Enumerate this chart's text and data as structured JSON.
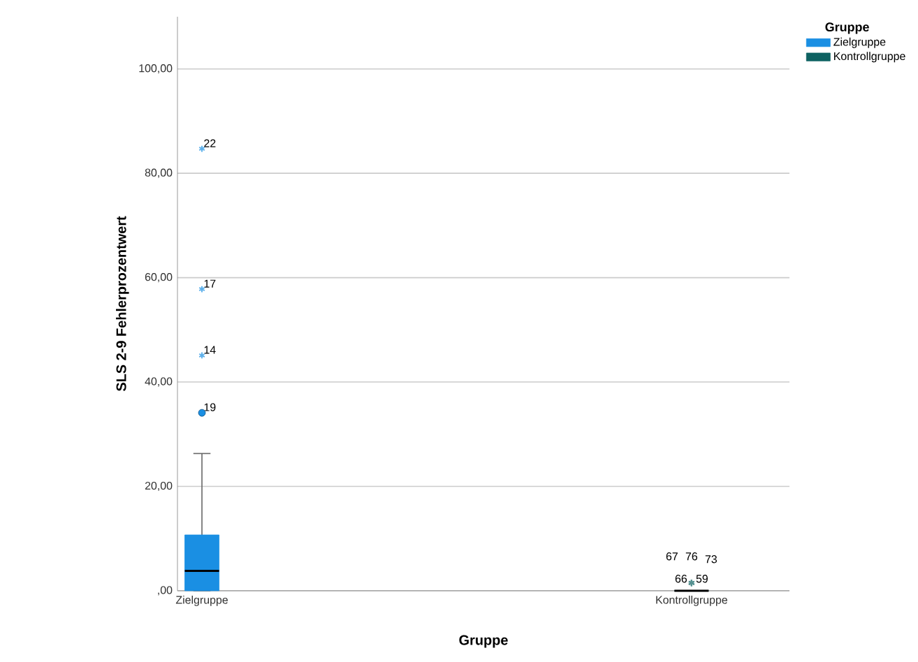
{
  "chart_data": {
    "type": "box",
    "xlabel": "Gruppe",
    "ylabel": "SLS 2-9 Fehlerprozentwert",
    "legend_title": "Gruppe",
    "legend": "right",
    "grid": "y",
    "categories": [
      "Zielgruppe",
      "Kontrollgruppe"
    ],
    "series": [
      {
        "name": "Zielgruppe",
        "color": "#1a8fe3",
        "boxes": [
          {
            "low": 0,
            "q1": 0,
            "median": 3.8,
            "q3": 10.7,
            "high": 26.3,
            "outliers": [
              34.1,
              45.1,
              57.8,
              84.7
            ]
          },
          null
        ]
      },
      {
        "name": "Kontrollgruppe",
        "color": "#0e6262",
        "boxes": [
          null,
          {
            "low": 0,
            "q1": 0,
            "median": 0,
            "q3": 0,
            "high": 0,
            "outliers": [
              1.5,
              1.5,
              1.5,
              1.5,
              1.5
            ]
          }
        ]
      }
    ],
    "ylim": [
      0,
      110
    ],
    "yticks": [
      {
        "value": 0,
        "label": ",00"
      },
      {
        "value": 20,
        "label": "20,00"
      },
      {
        "value": 40,
        "label": "40,00"
      },
      {
        "value": 60,
        "label": "60,00"
      },
      {
        "value": 80,
        "label": "80,00"
      },
      {
        "value": 100,
        "label": "100,00"
      }
    ],
    "annotations": [
      "19",
      "14",
      "17",
      "22",
      "66",
      "59",
      "67",
      "76",
      "73"
    ]
  }
}
